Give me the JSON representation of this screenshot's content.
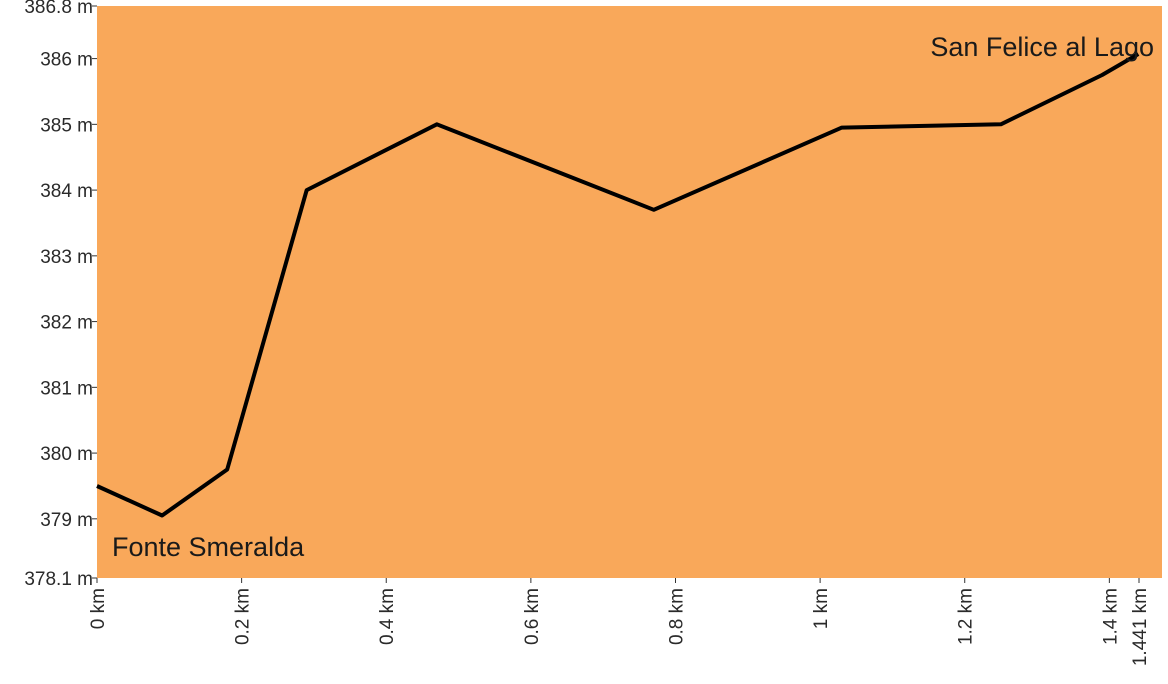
{
  "chart_data": {
    "type": "line",
    "background_color": "#F9A85A",
    "line_color": "#000000",
    "y_unit": "m",
    "x_unit": "km",
    "ylim": [
      378.1,
      386.8
    ],
    "xlim": [
      0,
      1.441
    ],
    "y_ticks": [
      {
        "value": 386.8,
        "label": "386.8 m"
      },
      {
        "value": 386,
        "label": "386 m"
      },
      {
        "value": 385,
        "label": "385 m"
      },
      {
        "value": 384,
        "label": "384 m"
      },
      {
        "value": 383,
        "label": "383 m"
      },
      {
        "value": 382,
        "label": "382 m"
      },
      {
        "value": 381,
        "label": "381 m"
      },
      {
        "value": 380,
        "label": "380 m"
      },
      {
        "value": 379,
        "label": "379 m"
      },
      {
        "value": 378.1,
        "label": "378.1 m"
      }
    ],
    "x_ticks": [
      {
        "value": 0,
        "label": "0 km"
      },
      {
        "value": 0.2,
        "label": "0.2 km"
      },
      {
        "value": 0.4,
        "label": "0.4 km"
      },
      {
        "value": 0.6,
        "label": "0.6 km"
      },
      {
        "value": 0.8,
        "label": "0.8 km"
      },
      {
        "value": 1,
        "label": "1 km"
      },
      {
        "value": 1.2,
        "label": "1.2 km"
      },
      {
        "value": 1.4,
        "label": "1.4 km"
      },
      {
        "value": 1.441,
        "label": "1.441 km"
      }
    ],
    "x": [
      0,
      0.09,
      0.18,
      0.29,
      0.47,
      0.77,
      1.03,
      1.25,
      1.39,
      1.44
    ],
    "y": [
      379.5,
      379.05,
      379.75,
      384.0,
      385.0,
      383.7,
      384.95,
      385.0,
      385.75,
      386.07
    ],
    "annotations": {
      "start": "Fonte Smeralda",
      "end": "San Felice al Lago"
    }
  }
}
